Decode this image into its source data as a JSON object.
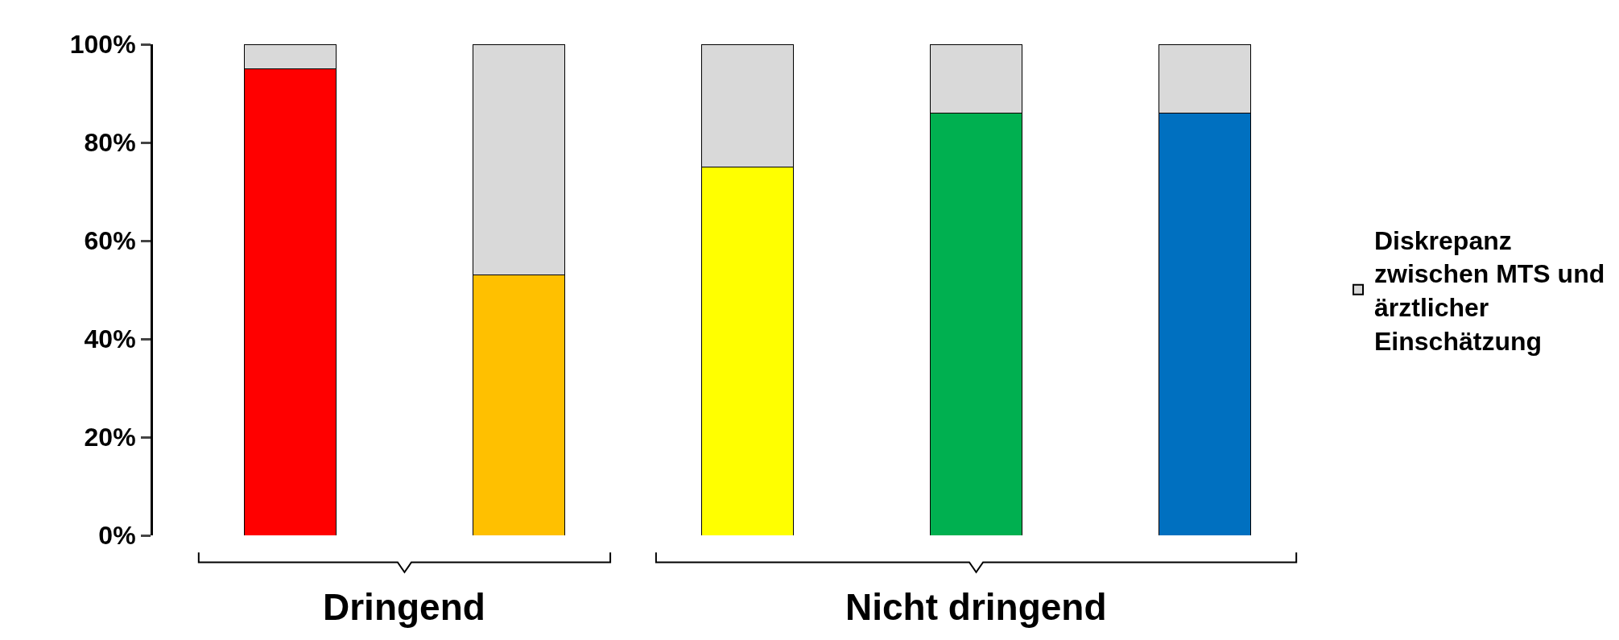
{
  "chart_data": {
    "type": "bar",
    "stacked": true,
    "categories": [
      null,
      null,
      null,
      null,
      null
    ],
    "series": [
      {
        "colors": [
          "#ff0000",
          "#ffc000",
          "#ffff00",
          "#00b050",
          "#0070c0"
        ],
        "values": [
          95,
          53,
          75,
          86,
          86
        ]
      },
      {
        "name": "Diskrepanz zwischen MTS und ärztlicher Einschätzung",
        "color": "#d9d9d9",
        "values": [
          5,
          47,
          25,
          14,
          14
        ]
      }
    ],
    "ylim": [
      0,
      100
    ],
    "yticks": [
      {
        "value": 0,
        "label": "0%"
      },
      {
        "value": 20,
        "label": "20%"
      },
      {
        "value": 40,
        "label": "40%"
      },
      {
        "value": 60,
        "label": "60%"
      },
      {
        "value": 80,
        "label": "80%"
      },
      {
        "value": 100,
        "label": "100%"
      }
    ],
    "annotations": [
      "Dringend",
      "Nicht dringend"
    ],
    "legend": "right",
    "tick_labels": "y"
  }
}
